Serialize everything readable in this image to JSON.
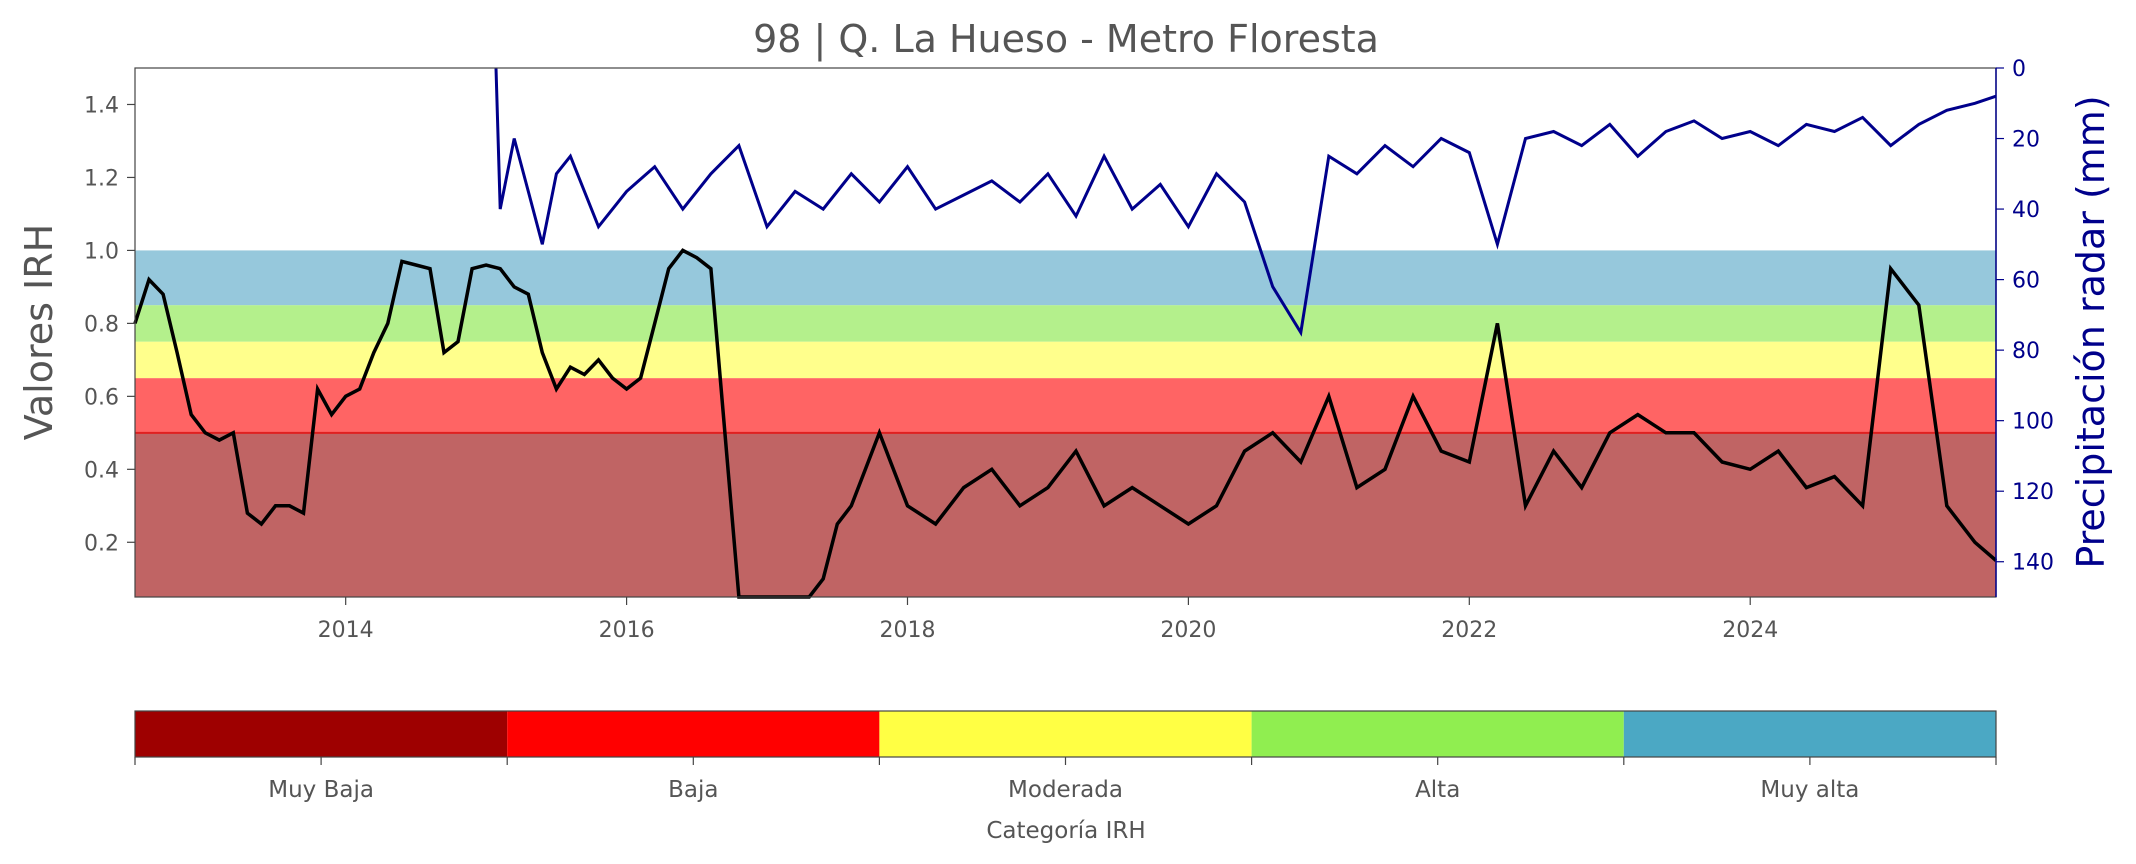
{
  "chart_data": {
    "type": "line",
    "title": "98 | Q. La Hueso - Metro Floresta",
    "ylabel": "Valores IRH",
    "ylabel_right": "Precipitación radar (mm)",
    "ylim": [
      0.05,
      1.5
    ],
    "ylim_right": [
      150,
      0
    ],
    "xlim": [
      2012.5,
      2025.75
    ],
    "x_ticks": [
      "2014",
      "2016",
      "2018",
      "2020",
      "2022",
      "2024"
    ],
    "x_tick_values": [
      2014,
      2016,
      2018,
      2020,
      2022,
      2024
    ],
    "y_ticks": [
      "0.2",
      "0.4",
      "0.6",
      "0.8",
      "1.0",
      "1.2",
      "1.4"
    ],
    "y_tick_values": [
      0.2,
      0.4,
      0.6,
      0.8,
      1.0,
      1.2,
      1.4
    ],
    "y_ticks_right": [
      "0",
      "20",
      "40",
      "60",
      "80",
      "100",
      "120",
      "140"
    ],
    "y_tick_values_right": [
      0,
      20,
      40,
      60,
      80,
      100,
      120,
      140
    ],
    "grid": false,
    "bands": [
      {
        "category": "Muy Baja",
        "from": 0.05,
        "to": 0.5,
        "color": "#c06464"
      },
      {
        "category": "Baja",
        "from": 0.5,
        "to": 0.65,
        "color": "#ff6464"
      },
      {
        "category": "Moderada",
        "from": 0.65,
        "to": 0.75,
        "color": "#ffff8c"
      },
      {
        "category": "Alta",
        "from": 0.75,
        "to": 0.85,
        "color": "#b4f08c"
      },
      {
        "category": "Muy alta",
        "from": 0.85,
        "to": 1.0,
        "color": "#96c8dc"
      }
    ],
    "threshold_line": {
      "y": 0.5,
      "color": "#e02020"
    },
    "series": [
      {
        "axis": "left",
        "color": "#000000",
        "x": [
          2012.5,
          2012.6,
          2012.7,
          2012.8,
          2012.9,
          2013.0,
          2013.1,
          2013.2,
          2013.3,
          2013.4,
          2013.5,
          2013.6,
          2013.7,
          2013.8,
          2013.9,
          2014.0,
          2014.1,
          2014.2,
          2014.3,
          2014.4,
          2014.5,
          2014.6,
          2014.7,
          2014.8,
          2014.9,
          2015.0,
          2015.1,
          2015.2,
          2015.3,
          2015.4,
          2015.5,
          2015.6,
          2015.7,
          2015.8,
          2015.9,
          2016.0,
          2016.1,
          2016.2,
          2016.3,
          2016.4,
          2016.5,
          2016.6,
          2016.7,
          2016.8,
          2016.9,
          2017.0,
          2017.1,
          2017.2,
          2017.3,
          2017.4,
          2017.5,
          2017.6,
          2017.7,
          2017.8,
          2017.9,
          2018.0,
          2018.2,
          2018.4,
          2018.6,
          2018.8,
          2019.0,
          2019.2,
          2019.4,
          2019.6,
          2019.8,
          2020.0,
          2020.2,
          2020.4,
          2020.6,
          2020.8,
          2021.0,
          2021.2,
          2021.4,
          2021.6,
          2021.8,
          2022.0,
          2022.2,
          2022.4,
          2022.6,
          2022.8,
          2023.0,
          2023.2,
          2023.4,
          2023.6,
          2023.8,
          2024.0,
          2024.2,
          2024.4,
          2024.6,
          2024.8,
          2025.0,
          2025.2,
          2025.4,
          2025.6,
          2025.75
        ],
        "y": [
          0.8,
          0.92,
          0.88,
          0.72,
          0.55,
          0.5,
          0.48,
          0.5,
          0.28,
          0.25,
          0.3,
          0.3,
          0.28,
          0.62,
          0.55,
          0.6,
          0.62,
          0.72,
          0.8,
          0.97,
          0.96,
          0.95,
          0.72,
          0.75,
          0.95,
          0.96,
          0.95,
          0.9,
          0.88,
          0.72,
          0.62,
          0.68,
          0.66,
          0.7,
          0.65,
          0.62,
          0.65,
          0.8,
          0.95,
          1.0,
          0.98,
          0.95,
          0.5,
          0.05,
          0.05,
          0.05,
          0.05,
          0.05,
          0.05,
          0.1,
          0.25,
          0.3,
          0.4,
          0.5,
          0.4,
          0.3,
          0.25,
          0.35,
          0.4,
          0.3,
          0.35,
          0.45,
          0.3,
          0.35,
          0.3,
          0.25,
          0.3,
          0.45,
          0.5,
          0.42,
          0.6,
          0.35,
          0.4,
          0.6,
          0.45,
          0.42,
          0.8,
          0.3,
          0.45,
          0.35,
          0.5,
          0.55,
          0.5,
          0.5,
          0.42,
          0.4,
          0.45,
          0.35,
          0.38,
          0.3,
          0.95,
          0.85,
          0.3,
          0.2,
          0.15
        ]
      },
      {
        "axis": "right",
        "color": "#00008b",
        "x": [
          2015.07,
          2015.1,
          2015.2,
          2015.3,
          2015.4,
          2015.5,
          2015.6,
          2015.8,
          2016.0,
          2016.2,
          2016.4,
          2016.6,
          2016.8,
          2017.0,
          2017.2,
          2017.4,
          2017.6,
          2017.8,
          2018.0,
          2018.2,
          2018.4,
          2018.6,
          2018.8,
          2019.0,
          2019.2,
          2019.4,
          2019.6,
          2019.8,
          2020.0,
          2020.2,
          2020.4,
          2020.6,
          2020.8,
          2021.0,
          2021.2,
          2021.4,
          2021.6,
          2021.8,
          2022.0,
          2022.2,
          2022.4,
          2022.6,
          2022.8,
          2023.0,
          2023.2,
          2023.4,
          2023.6,
          2023.8,
          2024.0,
          2024.2,
          2024.4,
          2024.6,
          2024.8,
          2025.0,
          2025.2,
          2025.4,
          2025.6,
          2025.75
        ],
        "values": [
          0,
          40,
          20,
          35,
          50,
          30,
          25,
          45,
          35,
          28,
          40,
          30,
          22,
          45,
          35,
          40,
          30,
          38,
          28,
          40,
          36,
          32,
          38,
          30,
          42,
          25,
          40,
          33,
          45,
          30,
          38,
          62,
          75,
          25,
          30,
          22,
          28,
          20,
          24,
          50,
          20,
          18,
          22,
          16,
          25,
          18,
          15,
          20,
          18,
          22,
          16,
          18,
          14,
          22,
          16,
          12,
          10,
          8
        ]
      }
    ],
    "colorbar": {
      "label": "Categoría IRH",
      "categories": [
        "Muy Baja",
        "Baja",
        "Moderada",
        "Alta",
        "Muy alta"
      ],
      "colors": [
        "#9e0000",
        "#ff0000",
        "#ffff44",
        "#90ee50",
        "#4ba8c4"
      ]
    }
  }
}
